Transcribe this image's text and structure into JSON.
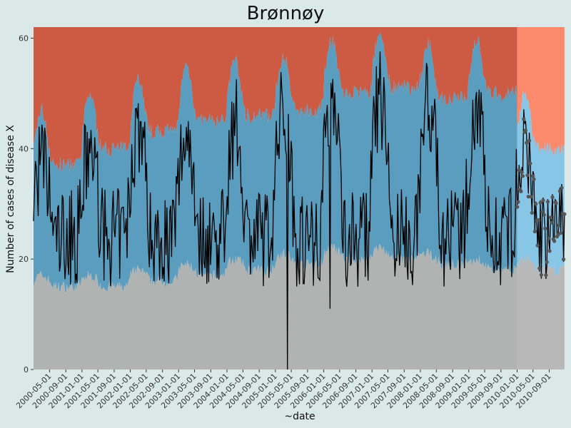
{
  "chart_data": {
    "type": "area",
    "title": "Brønnøy",
    "xlabel": "~date",
    "ylabel": "Number of cases of disease X",
    "ylim": [
      0,
      62
    ],
    "yticks": [
      0,
      20,
      40,
      60
    ],
    "xlim": [
      "2000-01-01",
      "2010-12-31"
    ],
    "xticks": [
      "2000-05-01",
      "2000-09-01",
      "2001-01-01",
      "2001-05-01",
      "2001-09-01",
      "2002-01-01",
      "2002-05-01",
      "2002-09-01",
      "2003-01-01",
      "2003-05-01",
      "2003-09-01",
      "2004-01-01",
      "2004-05-01",
      "2004-09-01",
      "2005-01-01",
      "2005-05-01",
      "2005-09-01",
      "2006-01-01",
      "2006-05-01",
      "2006-09-01",
      "2007-01-01",
      "2007-05-01",
      "2007-09-01",
      "2008-01-01",
      "2008-05-01",
      "2008-09-01",
      "2009-01-01",
      "2009-05-01",
      "2009-09-01",
      "2010-01-01",
      "2010-05-01",
      "2010-09-01"
    ],
    "forecast_start": "2010-01-01",
    "grid": false,
    "legend": "none",
    "series": [
      {
        "name": "",
        "role": "lower-threshold-band",
        "color": "#b1b3b3",
        "forecast_color": "#b8b8b8"
      },
      {
        "name": "",
        "role": "expected-band",
        "color": "#5a9dbf",
        "forecast_color": "#87c6e6"
      },
      {
        "name": "",
        "role": "upper-threshold-band",
        "color": "#cd5b44",
        "forecast_color": "#fb8a6c"
      },
      {
        "name": "",
        "role": "observed-cases",
        "color": "#000000"
      },
      {
        "name": "",
        "role": "forecast-points",
        "color": "#555555"
      }
    ],
    "seasonal_peaks": [
      {
        "year": 2000,
        "lower": 17,
        "upper": 47,
        "observed_peak": 45
      },
      {
        "year": 2001,
        "lower": 17,
        "upper": 50,
        "observed_peak": 47
      },
      {
        "year": 2002,
        "lower": 18,
        "upper": 53,
        "observed_peak": 52
      },
      {
        "year": 2003,
        "lower": 19,
        "upper": 55,
        "observed_peak": 51
      },
      {
        "year": 2004,
        "lower": 20,
        "upper": 56,
        "observed_peak": 52
      },
      {
        "year": 2005,
        "lower": 21,
        "upper": 57,
        "observed_peak": 55
      },
      {
        "year": 2006,
        "lower": 22,
        "upper": 60,
        "observed_peak": 58
      },
      {
        "year": 2007,
        "lower": 22,
        "upper": 61,
        "observed_peak": 57
      },
      {
        "year": 2008,
        "lower": 21,
        "upper": 59,
        "observed_peak": 57
      },
      {
        "year": 2009,
        "lower": 20,
        "upper": 60,
        "observed_peak": 56
      },
      {
        "year": 2010,
        "lower": 20,
        "upper": 50,
        "observed_peak": 47
      }
    ],
    "notable_observations": [
      {
        "date": "2005-04-01",
        "value": 0
      },
      {
        "date": "2006-02-15",
        "value": 11
      }
    ]
  }
}
